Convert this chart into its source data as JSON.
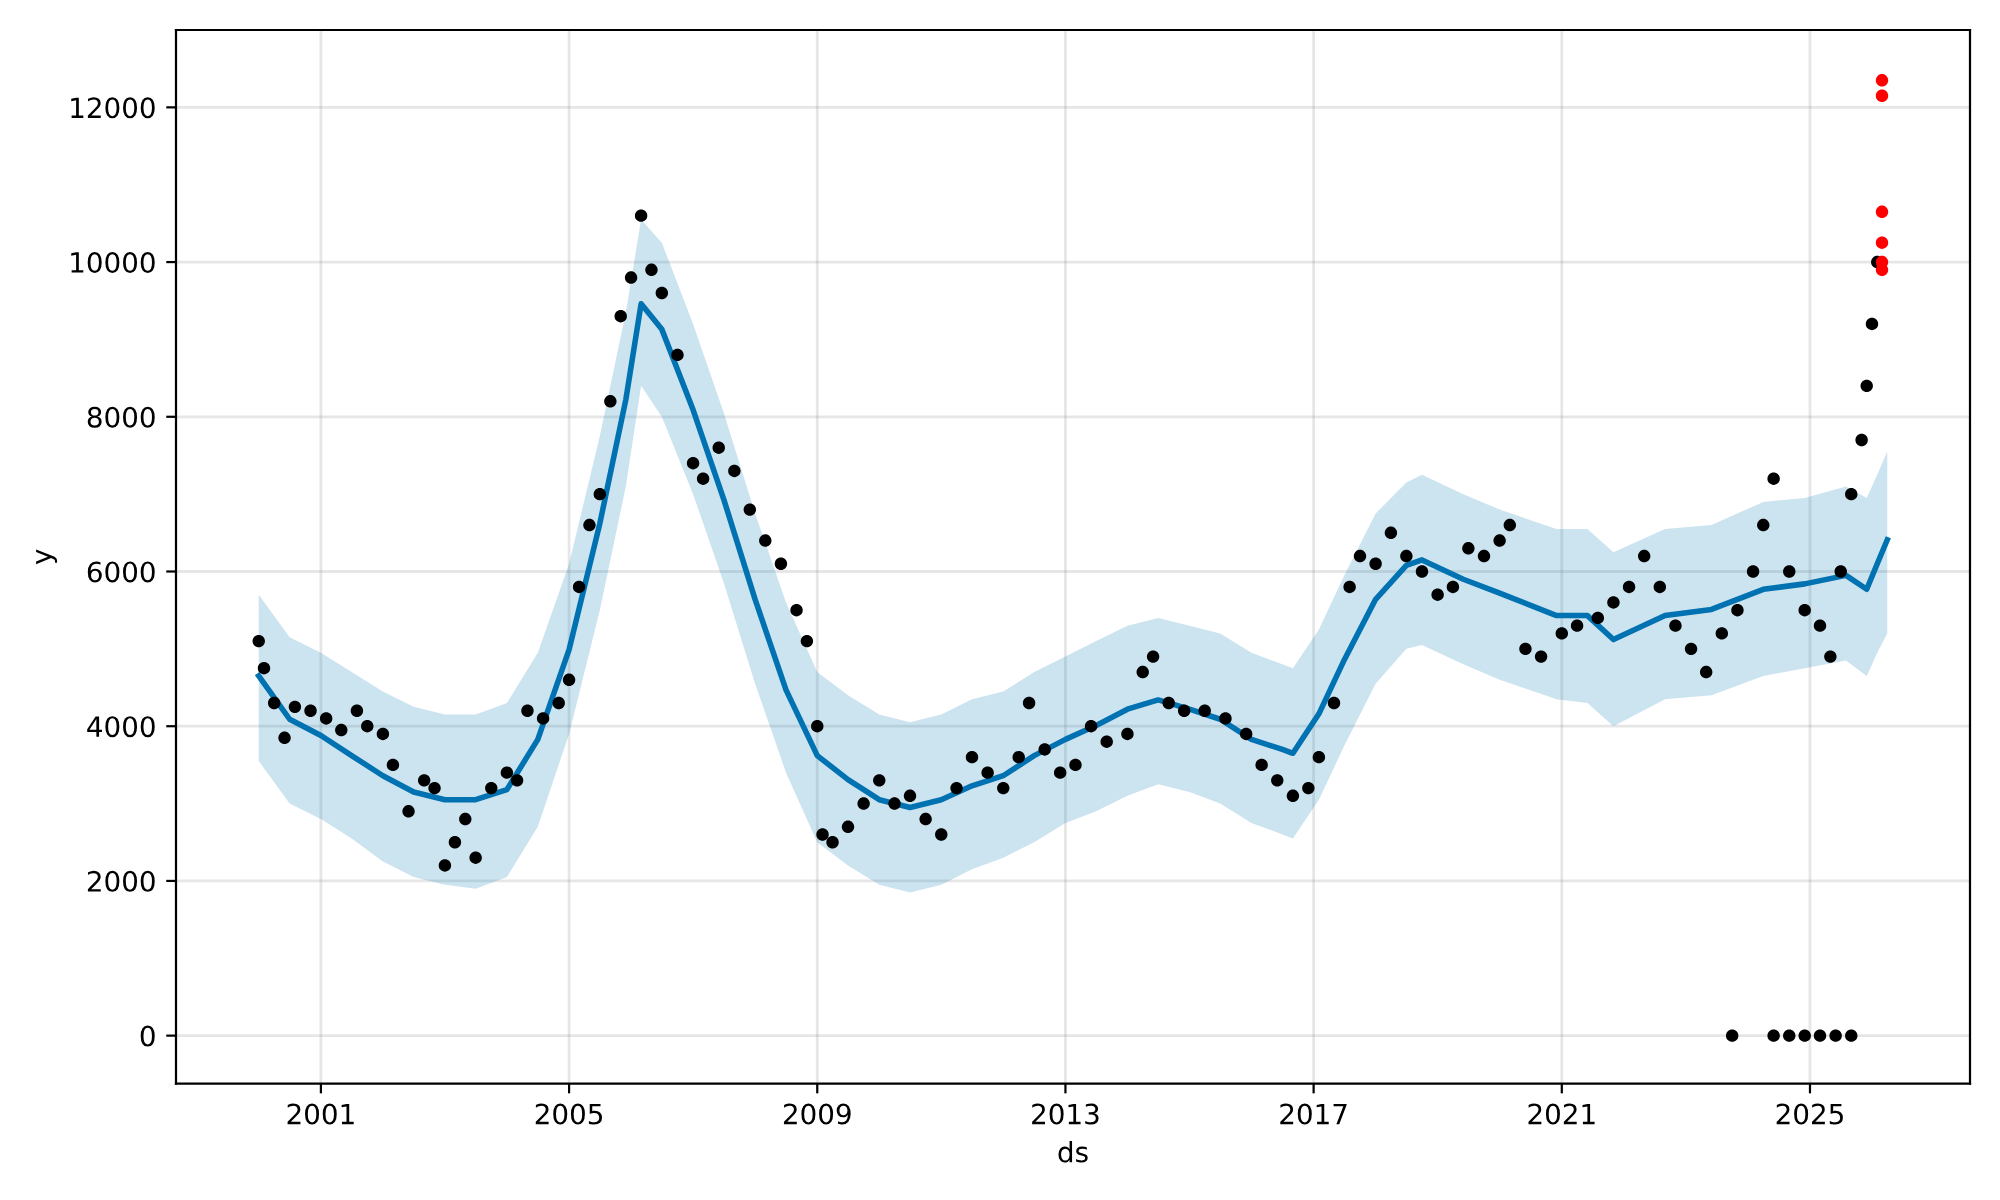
{
  "chart_data": {
    "type": "line",
    "xlabel": "ds",
    "ylabel": "y",
    "xlim": [
      "1998-09",
      "2027-08"
    ],
    "ylim": [
      -620,
      13000
    ],
    "xticks": [
      "2001",
      "2005",
      "2009",
      "2013",
      "2017",
      "2021",
      "2025"
    ],
    "yticks": [
      0,
      2000,
      4000,
      6000,
      8000,
      10000,
      12000
    ],
    "grid": true,
    "series": [
      {
        "color": "#0072b2",
        "marker": "none",
        "x": [
          "2000-01",
          "2000-07",
          "2001-01",
          "2001-07",
          "2002-01",
          "2002-07",
          "2003-01",
          "2003-07",
          "2004-01",
          "2004-07",
          "2005-01",
          "2005-07",
          "2005-12",
          "2006-03",
          "2006-07",
          "2007-01",
          "2007-07",
          "2008-01",
          "2008-07",
          "2009-01",
          "2009-07",
          "2010-01",
          "2010-07",
          "2011-01",
          "2011-07",
          "2012-01",
          "2012-07",
          "2013-01",
          "2013-07",
          "2014-01",
          "2014-07",
          "2015-01",
          "2015-07",
          "2016-01",
          "2016-07",
          "2016-09",
          "2017-02",
          "2017-07",
          "2018-01",
          "2018-07",
          "2018-10",
          "2019-06",
          "2020-01",
          "2020-12",
          "2021-06",
          "2021-11",
          "2022-09",
          "2023-06",
          "2024-04",
          "2024-12",
          "2025-08",
          "2025-12",
          "2026-02",
          "2026-04"
        ],
        "values": [
          4650,
          4090,
          3880,
          3620,
          3360,
          3150,
          3050,
          3050,
          3180,
          3830,
          4990,
          6620,
          8220,
          9460,
          9130,
          8090,
          6930,
          5640,
          4470,
          3620,
          3310,
          3050,
          2950,
          3050,
          3230,
          3360,
          3620,
          3830,
          4010,
          4220,
          4340,
          4220,
          4090,
          3830,
          3700,
          3650,
          4160,
          4860,
          5640,
          6080,
          6150,
          5900,
          5720,
          5430,
          5430,
          5120,
          5430,
          5510,
          5770,
          5840,
          5950,
          5770,
          6100,
          6410
        ],
        "lower": [
          3550,
          3000,
          2800,
          2550,
          2250,
          2050,
          1950,
          1900,
          2050,
          2700,
          3900,
          5500,
          7100,
          8400,
          8000,
          7000,
          5850,
          4550,
          3400,
          2500,
          2200,
          1950,
          1850,
          1950,
          2150,
          2300,
          2500,
          2750,
          2900,
          3100,
          3250,
          3150,
          3000,
          2750,
          2600,
          2550,
          3050,
          3750,
          4550,
          5000,
          5050,
          4800,
          4600,
          4350,
          4300,
          4000,
          4350,
          4400,
          4650,
          4750,
          4850,
          4650,
          4950,
          5200
        ],
        "upper": [
          5700,
          5150,
          4950,
          4700,
          4450,
          4250,
          4150,
          4150,
          4300,
          4950,
          6100,
          7750,
          9350,
          10550,
          10250,
          9200,
          8050,
          6750,
          5600,
          4700,
          4400,
          4150,
          4050,
          4150,
          4350,
          4450,
          4700,
          4900,
          5100,
          5300,
          5400,
          5300,
          5200,
          4950,
          4800,
          4750,
          5250,
          5950,
          6750,
          7150,
          7250,
          7000,
          6800,
          6550,
          6550,
          6250,
          6550,
          6600,
          6900,
          6950,
          7100,
          6950,
          7250,
          7550
        ]
      },
      {
        "type": "scatter",
        "color": "#000000",
        "marker": "circle",
        "x": [
          "2000-01",
          "2000-02",
          "2000-04",
          "2000-06",
          "2000-08",
          "2000-11",
          "2001-02",
          "2001-05",
          "2001-08",
          "2001-10",
          "2002-01",
          "2002-03",
          "2002-06",
          "2002-09",
          "2002-11",
          "2003-01",
          "2003-03",
          "2003-05",
          "2003-07",
          "2003-10",
          "2004-01",
          "2004-03",
          "2004-05",
          "2004-08",
          "2004-11",
          "2005-01",
          "2005-03",
          "2005-05",
          "2005-07",
          "2005-09",
          "2005-11",
          "2006-01",
          "2006-03",
          "2006-05",
          "2006-07",
          "2006-10",
          "2007-01",
          "2007-03",
          "2007-06",
          "2007-09",
          "2007-12",
          "2008-03",
          "2008-06",
          "2008-09",
          "2008-11",
          "2009-01",
          "2009-02",
          "2009-04",
          "2009-07",
          "2009-10",
          "2010-01",
          "2010-04",
          "2010-07",
          "2010-10",
          "2011-01",
          "2011-04",
          "2011-07",
          "2011-10",
          "2012-01",
          "2012-04",
          "2012-06",
          "2012-09",
          "2012-12",
          "2013-03",
          "2013-06",
          "2013-09",
          "2014-01",
          "2014-04",
          "2014-06",
          "2014-09",
          "2014-12",
          "2015-04",
          "2015-08",
          "2015-12",
          "2016-03",
          "2016-06",
          "2016-09",
          "2016-12",
          "2017-02",
          "2017-05",
          "2017-08",
          "2017-10",
          "2018-01",
          "2018-04",
          "2018-07",
          "2018-10",
          "2019-01",
          "2019-04",
          "2019-07",
          "2019-10",
          "2020-01",
          "2020-03",
          "2020-06",
          "2020-09",
          "2021-01",
          "2021-04",
          "2021-08",
          "2021-11",
          "2022-02",
          "2022-05",
          "2022-08",
          "2022-11",
          "2023-02",
          "2023-05",
          "2023-08",
          "2023-10",
          "2023-11",
          "2024-02",
          "2024-04",
          "2024-06",
          "2024-06",
          "2024-09",
          "2024-09",
          "2024-12",
          "2024-12",
          "2025-03",
          "2025-03",
          "2025-05",
          "2025-06",
          "2025-07",
          "2025-09",
          "2025-09",
          "2025-11",
          "2025-12",
          "2026-01",
          "2026-02"
        ],
        "values": [
          5100,
          4750,
          4300,
          3850,
          4250,
          4200,
          4100,
          3950,
          4200,
          4000,
          3900,
          3500,
          2900,
          3300,
          3200,
          2200,
          2500,
          2800,
          2300,
          3200,
          3400,
          3300,
          4200,
          4100,
          4300,
          4600,
          5800,
          6600,
          7000,
          8200,
          9300,
          9800,
          10600,
          9900,
          9600,
          8800,
          7400,
          7200,
          7600,
          7300,
          6800,
          6400,
          6100,
          5500,
          5100,
          4000,
          2600,
          2500,
          2700,
          3000,
          3300,
          3000,
          3100,
          2800,
          2600,
          3200,
          3600,
          3400,
          3200,
          3600,
          4300,
          3700,
          3400,
          3500,
          4000,
          3800,
          3900,
          4700,
          4900,
          4300,
          4200,
          4200,
          4100,
          3900,
          3500,
          3300,
          3100,
          3200,
          3600,
          4300,
          5800,
          6200,
          6100,
          6500,
          6200,
          6000,
          5700,
          5800,
          6300,
          6200,
          6400,
          6600,
          5000,
          4900,
          5200,
          5300,
          5400,
          5600,
          5800,
          6200,
          5800,
          5300,
          5000,
          4700,
          5200,
          0,
          5500,
          6000,
          6600,
          7200,
          0,
          6000,
          0,
          5500,
          0,
          5300,
          0,
          4900,
          0,
          6000,
          7000,
          0,
          7700,
          8400,
          9200,
          10000
        ]
      },
      {
        "type": "scatter",
        "color": "#ff0000",
        "marker": "circle",
        "x": [
          "2026-03",
          "2026-03",
          "2026-03",
          "2026-03",
          "2026-03",
          "2026-03"
        ],
        "values": [
          12350,
          12150,
          10650,
          10250,
          10000,
          9900
        ]
      }
    ]
  }
}
